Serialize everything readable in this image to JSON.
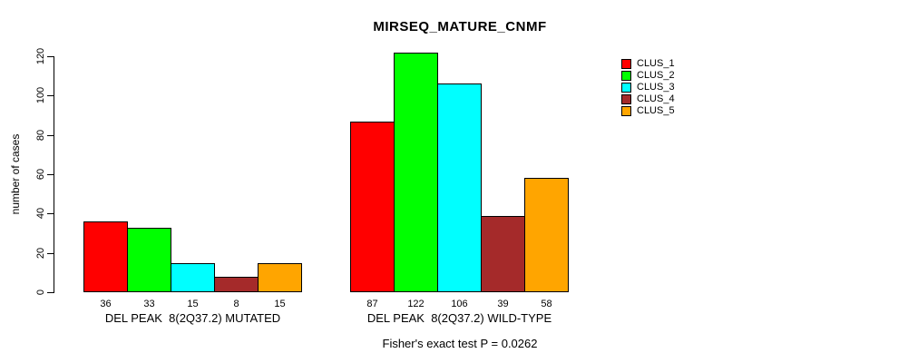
{
  "chart_data": {
    "type": "bar",
    "title": "MIRSEQ_MATURE_CNMF",
    "xlabel": "",
    "ylabel": "number of cases",
    "ylim": [
      0,
      120
    ],
    "yticks": [
      0,
      20,
      40,
      60,
      80,
      100,
      120
    ],
    "grid": false,
    "legend_position": "right",
    "categories": [
      "DEL PEAK  8(2Q37.2) MUTATED",
      "DEL PEAK  8(2Q37.2) WILD-TYPE"
    ],
    "series": [
      {
        "name": "CLUS_1",
        "color": "#FF0000",
        "values": [
          36,
          87
        ]
      },
      {
        "name": "CLUS_2",
        "color": "#00FF00",
        "values": [
          33,
          122
        ]
      },
      {
        "name": "CLUS_3",
        "color": "#00FFFF",
        "values": [
          15,
          106
        ]
      },
      {
        "name": "CLUS_4",
        "color": "#A52A2A",
        "values": [
          8,
          39
        ]
      },
      {
        "name": "CLUS_5",
        "color": "#FFA500",
        "values": [
          15,
          58
        ]
      }
    ],
    "bar_value_labels": {
      "DEL PEAK  8(2Q37.2) MUTATED": [
        36,
        33,
        15,
        8,
        15
      ],
      "DEL PEAK  8(2Q37.2) WILD-TYPE": [
        87,
        122,
        106,
        39,
        58
      ]
    },
    "annotation": "Fisher's exact test P = 0.0262"
  },
  "legend": {
    "items": [
      {
        "label": "CLUS_1",
        "color": "#FF0000"
      },
      {
        "label": "CLUS_2",
        "color": "#00FF00"
      },
      {
        "label": "CLUS_3",
        "color": "#00FFFF"
      },
      {
        "label": "CLUS_4",
        "color": "#A52A2A"
      },
      {
        "label": "CLUS_5",
        "color": "#FFA500"
      }
    ]
  }
}
